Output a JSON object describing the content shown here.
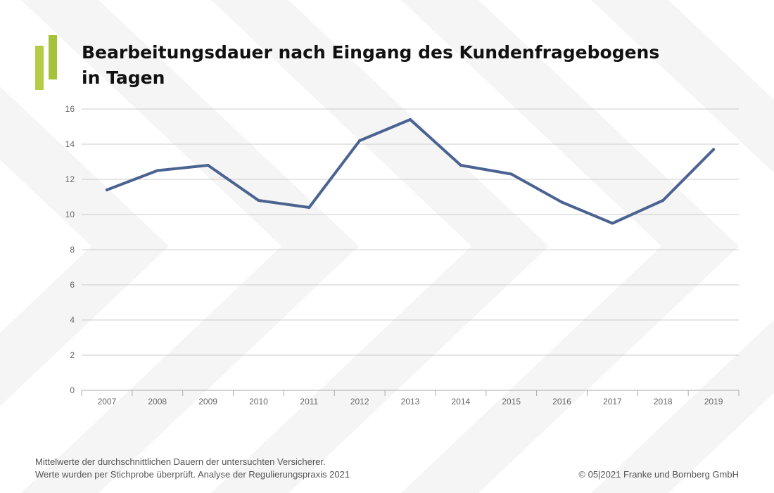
{
  "title": {
    "line1": "Bearbeitungsdauer nach Eingang des Kundenfragebogens",
    "line2": "in Tagen"
  },
  "brand": {
    "logo_colors": [
      "#b5cc45",
      "#a6c23a"
    ]
  },
  "chart_data": {
    "type": "line",
    "title": "Bearbeitungsdauer nach Eingang des Kundenfragebogens in Tagen",
    "xlabel": "",
    "ylabel": "",
    "ylim": [
      0,
      16
    ],
    "yticks": [
      "0",
      "2",
      "4",
      "6",
      "8",
      "10",
      "12",
      "14",
      "16"
    ],
    "grid": true,
    "categories": [
      "2007",
      "2008",
      "2009",
      "2010",
      "2011",
      "2012",
      "2013",
      "2014",
      "2015",
      "2016",
      "2017",
      "2018",
      "2019"
    ],
    "series": [
      {
        "name": "Bearbeitungsdauer",
        "color": "#4a6391",
        "values": [
          11.4,
          12.5,
          12.8,
          10.8,
          10.4,
          14.2,
          15.4,
          12.8,
          12.3,
          10.7,
          9.5,
          10.8,
          13.7
        ]
      }
    ]
  },
  "footer": {
    "note_line1": "Mittelwerte der durchschnittlichen Dauern der untersuchten Versicherer.",
    "note_line2": "Werte wurden per Stichprobe überprüft. Analyse der Regulierungspraxis 2021",
    "copyright": "© 05|2021 Franke und Bornberg GmbH"
  }
}
